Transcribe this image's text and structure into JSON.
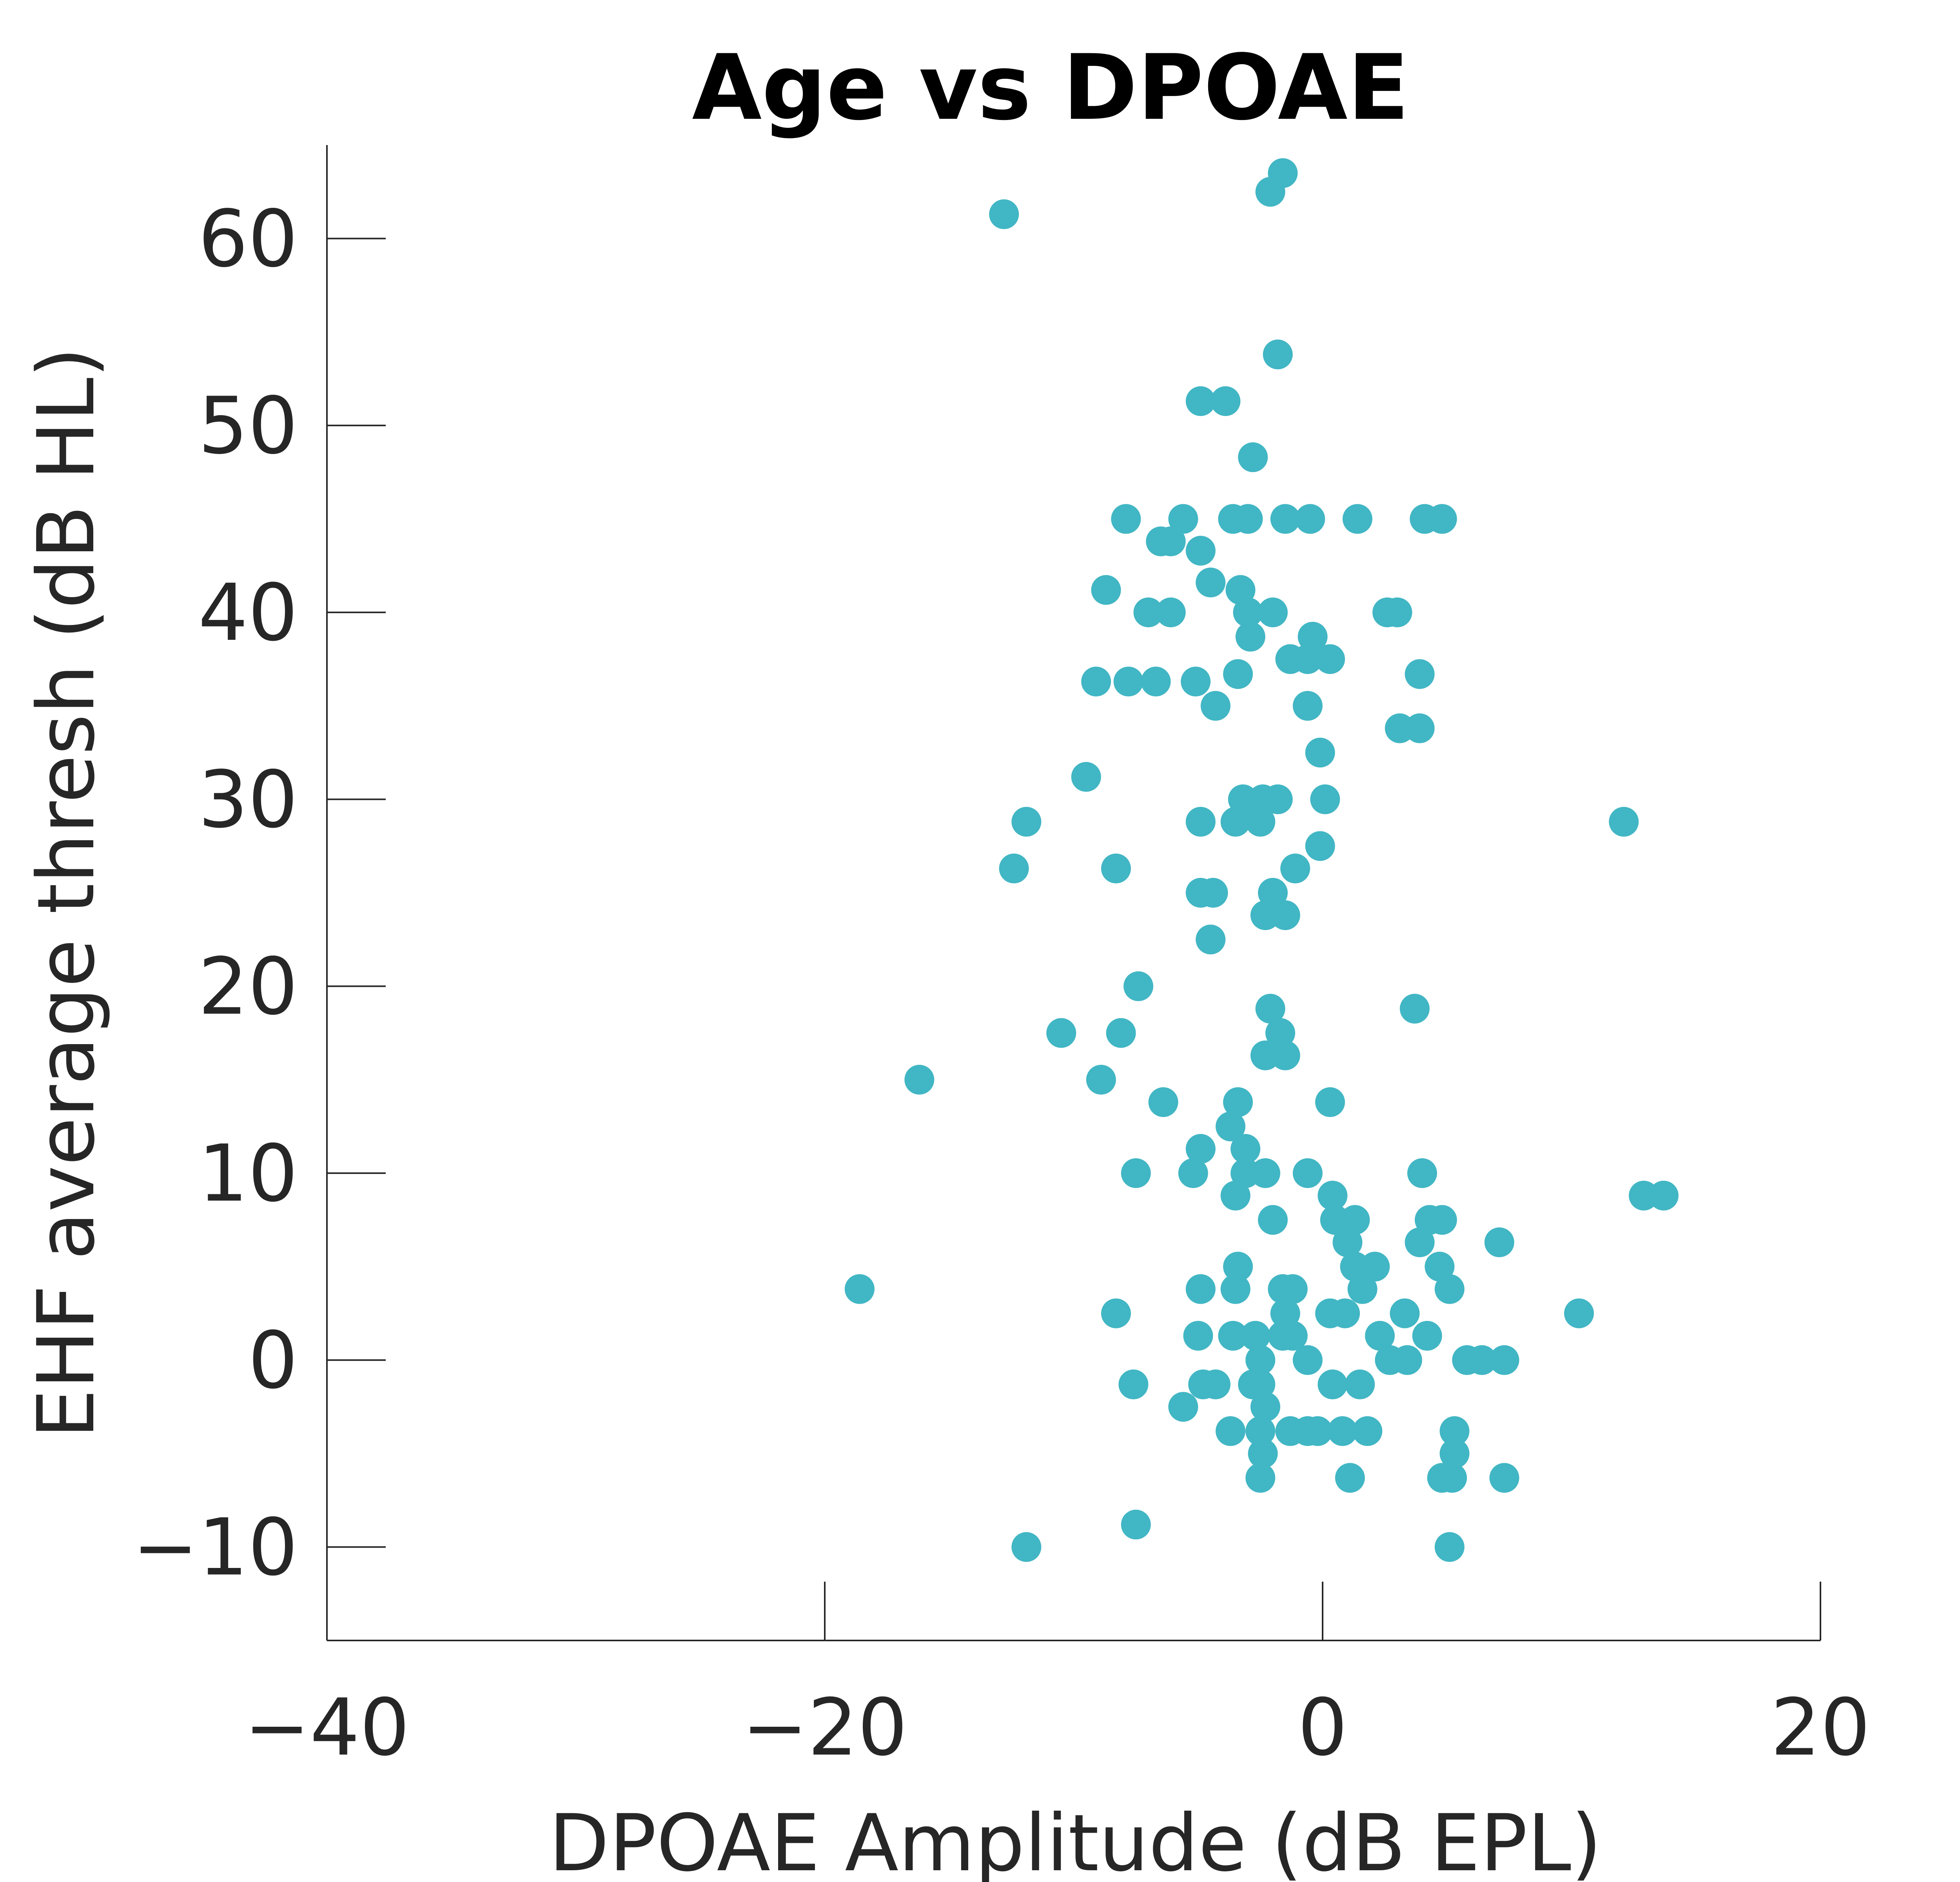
{
  "chart_data": {
    "type": "scatter",
    "title": "Age vs DPOAE",
    "xlabel": "DPOAE Amplitude (dB EPL)",
    "ylabel": "EHF average thresh (dB HL)",
    "xlim": [
      -40,
      20
    ],
    "ylim": [
      -15,
      65
    ],
    "xticks": [
      -40,
      -20,
      0,
      20
    ],
    "yticks": [
      -10,
      0,
      10,
      20,
      30,
      40,
      50,
      60
    ],
    "xtick_labels": [
      "−40",
      "−20",
      "0",
      "20"
    ],
    "ytick_labels": [
      "−10",
      "0",
      "10",
      "20",
      "30",
      "40",
      "50",
      "60"
    ],
    "grid": false,
    "marker_color": "#41b6c4",
    "points": [
      [
        -12.8,
        61.3
      ],
      [
        -2.1,
        62.5
      ],
      [
        -1.6,
        63.5
      ],
      [
        -1.8,
        53.8
      ],
      [
        -4.9,
        51.3
      ],
      [
        -3.9,
        51.3
      ],
      [
        -2.8,
        48.3
      ],
      [
        -7.9,
        45.0
      ],
      [
        -5.6,
        45.0
      ],
      [
        -3.6,
        45.0
      ],
      [
        -3.0,
        45.0
      ],
      [
        -1.5,
        45.0
      ],
      [
        -0.5,
        45.0
      ],
      [
        1.4,
        45.0
      ],
      [
        4.1,
        45.0
      ],
      [
        4.8,
        45.0
      ],
      [
        -6.5,
        43.8
      ],
      [
        -6.1,
        43.8
      ],
      [
        -4.9,
        43.3
      ],
      [
        -4.5,
        41.6
      ],
      [
        -3.3,
        41.2
      ],
      [
        -8.7,
        41.2
      ],
      [
        -7.0,
        40.0
      ],
      [
        -6.1,
        40.0
      ],
      [
        -3.0,
        40.0
      ],
      [
        -2.0,
        40.0
      ],
      [
        2.6,
        40.0
      ],
      [
        3.0,
        40.0
      ],
      [
        -2.9,
        38.7
      ],
      [
        -0.4,
        38.7
      ],
      [
        -1.3,
        37.5
      ],
      [
        -0.6,
        37.5
      ],
      [
        0.3,
        37.5
      ],
      [
        -9.1,
        36.3
      ],
      [
        -7.8,
        36.3
      ],
      [
        -6.7,
        36.3
      ],
      [
        -5.1,
        36.3
      ],
      [
        -3.4,
        36.7
      ],
      [
        3.9,
        36.7
      ],
      [
        -4.3,
        35.0
      ],
      [
        -0.6,
        35.0
      ],
      [
        3.1,
        33.8
      ],
      [
        3.9,
        33.8
      ],
      [
        -0.1,
        32.5
      ],
      [
        -9.5,
        31.2
      ],
      [
        -3.2,
        30.0
      ],
      [
        -2.4,
        30.0
      ],
      [
        -1.8,
        30.0
      ],
      [
        0.1,
        30.0
      ],
      [
        -11.9,
        28.8
      ],
      [
        -4.9,
        28.8
      ],
      [
        -3.5,
        28.8
      ],
      [
        -2.5,
        28.8
      ],
      [
        12.1,
        28.8
      ],
      [
        -0.1,
        27.5
      ],
      [
        -12.4,
        26.3
      ],
      [
        -8.3,
        26.3
      ],
      [
        -1.1,
        26.3
      ],
      [
        -4.9,
        25.0
      ],
      [
        -4.4,
        25.0
      ],
      [
        -2.0,
        25.0
      ],
      [
        -2.3,
        23.8
      ],
      [
        -1.5,
        23.8
      ],
      [
        -4.5,
        22.5
      ],
      [
        -7.4,
        20.0
      ],
      [
        -2.1,
        18.8
      ],
      [
        3.7,
        18.8
      ],
      [
        -10.5,
        17.5
      ],
      [
        -8.1,
        17.5
      ],
      [
        -1.7,
        17.5
      ],
      [
        -2.3,
        16.3
      ],
      [
        -1.5,
        16.3
      ],
      [
        -16.2,
        15.0
      ],
      [
        -8.9,
        15.0
      ],
      [
        -6.4,
        13.8
      ],
      [
        -3.4,
        13.8
      ],
      [
        0.3,
        13.8
      ],
      [
        -3.7,
        12.5
      ],
      [
        -4.9,
        11.3
      ],
      [
        -3.1,
        11.3
      ],
      [
        -7.5,
        10.0
      ],
      [
        -5.2,
        10.0
      ],
      [
        -3.1,
        10.0
      ],
      [
        -2.3,
        10.0
      ],
      [
        -0.6,
        10.0
      ],
      [
        4.0,
        10.0
      ],
      [
        -3.5,
        8.8
      ],
      [
        0.4,
        8.8
      ],
      [
        12.9,
        8.8
      ],
      [
        13.7,
        8.8
      ],
      [
        -2.0,
        7.5
      ],
      [
        0.5,
        7.5
      ],
      [
        1.3,
        7.5
      ],
      [
        4.3,
        7.5
      ],
      [
        4.8,
        7.5
      ],
      [
        1.0,
        6.3
      ],
      [
        3.9,
        6.3
      ],
      [
        7.1,
        6.3
      ],
      [
        -3.4,
        5.0
      ],
      [
        1.3,
        5.0
      ],
      [
        2.1,
        5.0
      ],
      [
        4.7,
        5.0
      ],
      [
        -18.6,
        3.8
      ],
      [
        -4.9,
        3.8
      ],
      [
        -3.5,
        3.8
      ],
      [
        -1.6,
        3.8
      ],
      [
        -1.2,
        3.8
      ],
      [
        1.6,
        3.8
      ],
      [
        5.1,
        3.8
      ],
      [
        -8.3,
        2.5
      ],
      [
        -1.5,
        2.5
      ],
      [
        0.3,
        2.5
      ],
      [
        0.9,
        2.5
      ],
      [
        3.3,
        2.5
      ],
      [
        10.3,
        2.5
      ],
      [
        -5.0,
        1.3
      ],
      [
        -3.6,
        1.3
      ],
      [
        -2.7,
        1.3
      ],
      [
        -1.6,
        1.3
      ],
      [
        -1.2,
        1.3
      ],
      [
        2.3,
        1.3
      ],
      [
        4.2,
        1.3
      ],
      [
        -2.5,
        0.0
      ],
      [
        -0.6,
        0.0
      ],
      [
        2.7,
        0.0
      ],
      [
        3.4,
        0.0
      ],
      [
        5.8,
        0.0
      ],
      [
        6.4,
        0.0
      ],
      [
        7.3,
        0.0
      ],
      [
        -7.6,
        -1.3
      ],
      [
        -4.8,
        -1.3
      ],
      [
        -4.3,
        -1.3
      ],
      [
        -2.8,
        -1.3
      ],
      [
        -2.5,
        -1.3
      ],
      [
        0.4,
        -1.3
      ],
      [
        1.5,
        -1.3
      ],
      [
        -5.6,
        -2.5
      ],
      [
        -2.3,
        -2.5
      ],
      [
        -3.7,
        -3.8
      ],
      [
        -2.5,
        -3.8
      ],
      [
        -1.3,
        -3.8
      ],
      [
        -0.6,
        -3.8
      ],
      [
        -0.2,
        -3.8
      ],
      [
        0.8,
        -3.8
      ],
      [
        1.8,
        -3.8
      ],
      [
        5.3,
        -3.8
      ],
      [
        -2.4,
        -5.0
      ],
      [
        5.3,
        -5.0
      ],
      [
        -2.5,
        -6.3
      ],
      [
        1.1,
        -6.3
      ],
      [
        4.8,
        -6.3
      ],
      [
        5.2,
        -6.3
      ],
      [
        7.3,
        -6.3
      ],
      [
        -7.5,
        -8.8
      ],
      [
        -11.9,
        -10.0
      ],
      [
        5.1,
        -10.0
      ]
    ]
  }
}
